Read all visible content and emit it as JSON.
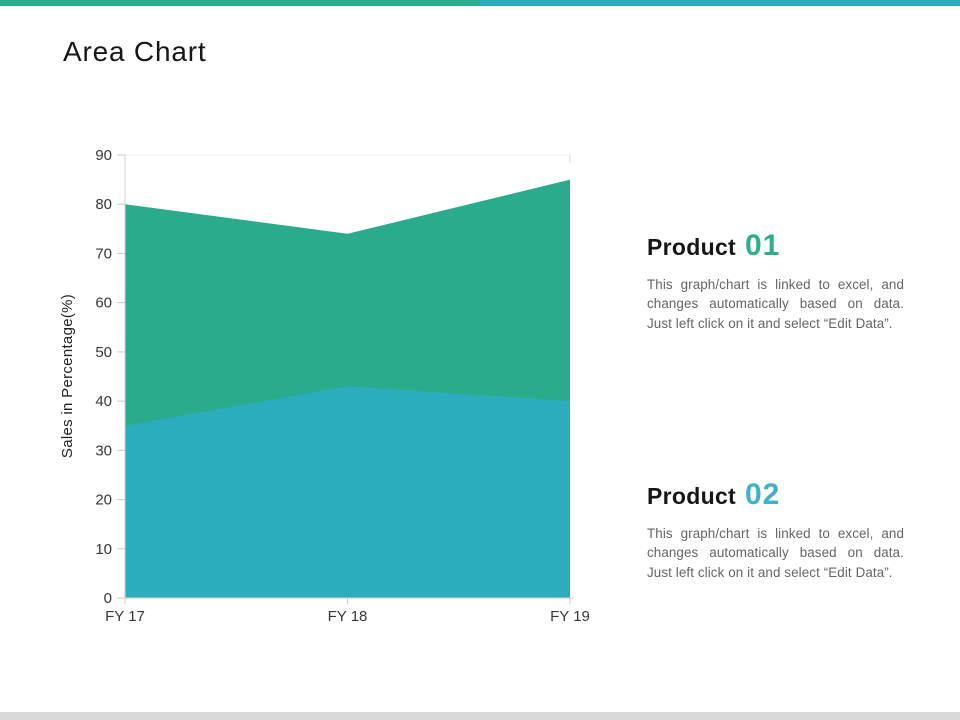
{
  "title": "Area Chart",
  "accent_bar": {
    "left_color": "#2aab8c",
    "right_color": "#2badbe"
  },
  "bottom_bar_color": "#d9d9d9",
  "chart_data": {
    "type": "area",
    "categories": [
      "FY 17",
      "FY 18",
      "FY 19"
    ],
    "series": [
      {
        "name": "Product 01",
        "color": "#2aab8c",
        "values": [
          80,
          74,
          85
        ]
      },
      {
        "name": "Product 02",
        "color": "#2badbe",
        "values": [
          35,
          43,
          40
        ]
      }
    ],
    "title": "",
    "xlabel": "",
    "ylabel": "Sales in Percentage(%)",
    "ylim": [
      0,
      90
    ],
    "ytick_step": 10,
    "grid": false,
    "legend": "none"
  },
  "products": [
    {
      "label": "Product",
      "number": "01",
      "color": "#2fae8e",
      "description": "This graph/chart is linked to excel, and changes automatically based on data. Just left click on it and select “Edit Data”."
    },
    {
      "label": "Product",
      "number": "02",
      "color": "#41b1c5",
      "description": "This graph/chart is linked to excel, and changes automatically based on data. Just left click on it and select “Edit Data”."
    }
  ]
}
